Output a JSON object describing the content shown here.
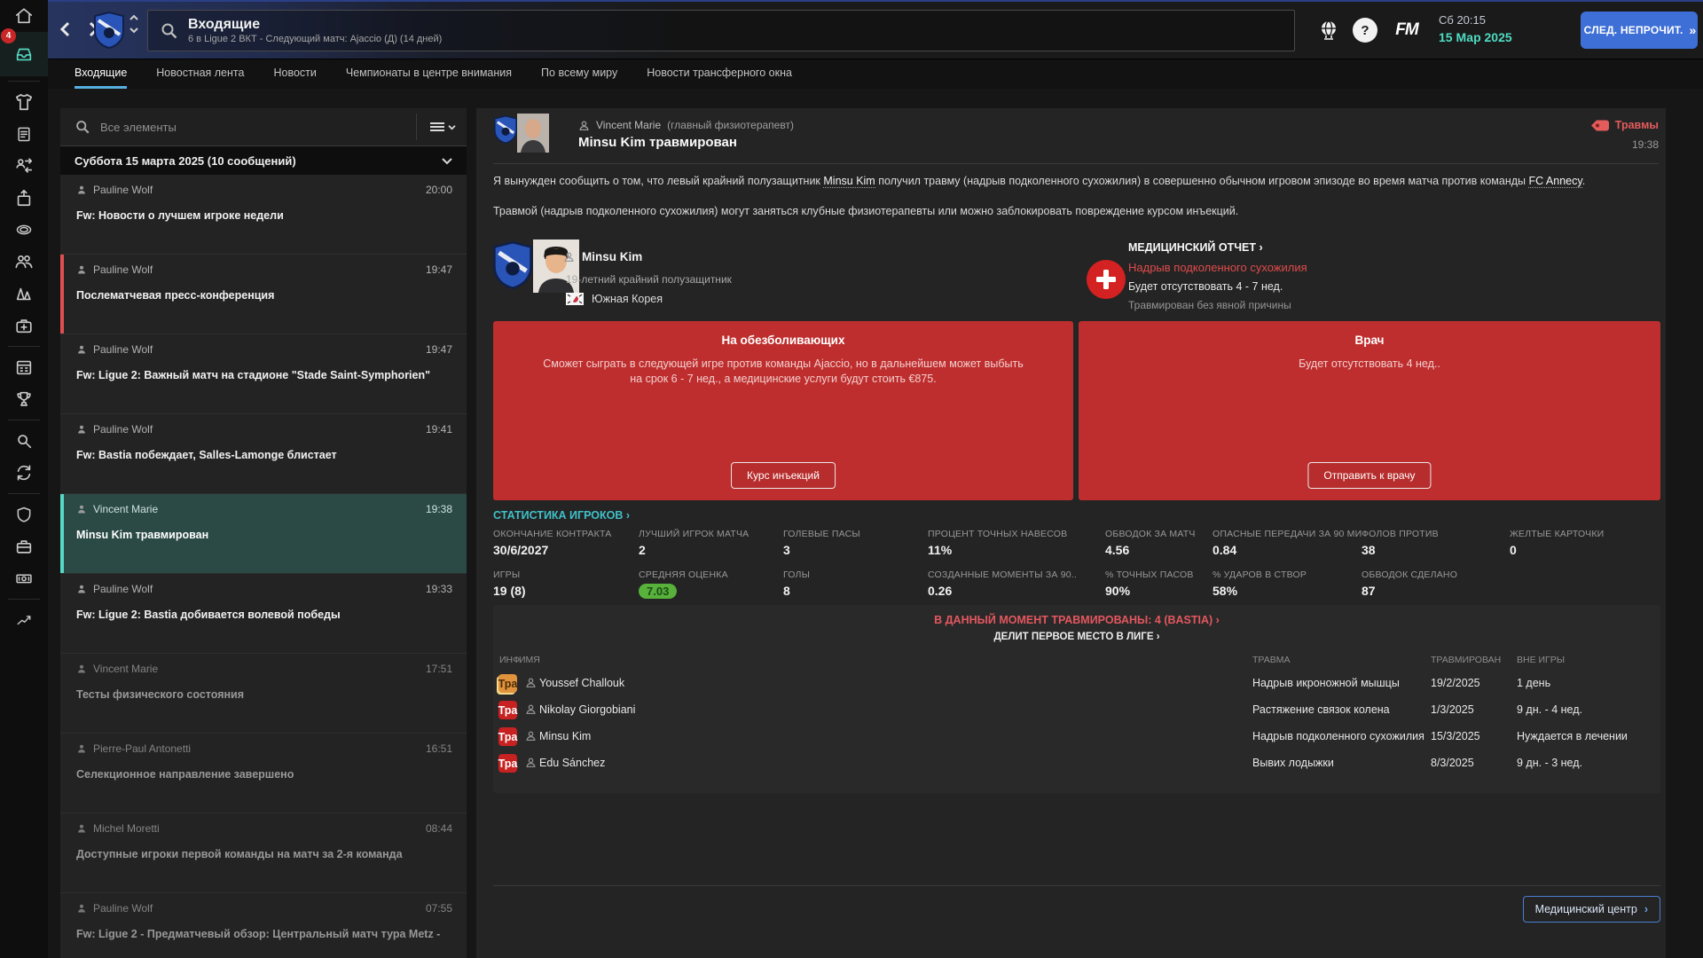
{
  "topbar": {
    "title": "Входящие",
    "subtitle": "6 в Ligue 2 ВКТ - Следующий матч: Ajaccio (Д) (14 дней)",
    "day_time": "Сб 20:15",
    "date": "15 Мар 2025",
    "next_unread_label": "СЛЕД. НЕПРОЧИТ.",
    "fm_logo": "FM",
    "help_glyph": "?"
  },
  "tabs": [
    {
      "label": "Входящие",
      "active": true
    },
    {
      "label": "Новостная лента",
      "active": false
    },
    {
      "label": "Новости",
      "active": false
    },
    {
      "label": "Чемпионаты в центре внимания",
      "active": false
    },
    {
      "label": "По всему миру",
      "active": false
    },
    {
      "label": "Новости трансферного окна",
      "active": false
    }
  ],
  "sidebar": {
    "badge": "4",
    "icons": [
      "home",
      "inbox",
      "shirt",
      "clipboard",
      "swap",
      "sub",
      "disc",
      "staff",
      "training",
      "medical",
      "calendar",
      "trophy",
      "scout",
      "transfers",
      "club",
      "briefcase",
      "finance",
      "form"
    ]
  },
  "inbox": {
    "search_placeholder": "Все элементы",
    "group_header": "Суббота 15 марта 2025 (10 сообщений)",
    "messages": [
      {
        "sender": "Pauline Wolf",
        "time": "20:00",
        "subject": "Fw: Новости о лучшем игроке недели",
        "state": "unread",
        "flag": false
      },
      {
        "sender": "Pauline Wolf",
        "time": "19:47",
        "subject": "Послематчевая пресс-конференция",
        "state": "unread",
        "flag": true
      },
      {
        "sender": "Pauline Wolf",
        "time": "19:47",
        "subject": "Fw: Ligue 2: Важный матч на стадионе \"Stade Saint-Symphorien\"",
        "state": "unread",
        "flag": false
      },
      {
        "sender": "Pauline Wolf",
        "time": "19:41",
        "subject": "Fw: Bastia побеждает, Salles-Lamonge блистает",
        "state": "unread",
        "flag": false
      },
      {
        "sender": "Vincent Marie",
        "time": "19:38",
        "subject": "Minsu Kim травмирован",
        "state": "selected",
        "flag": false
      },
      {
        "sender": "Pauline Wolf",
        "time": "19:33",
        "subject": "Fw: Ligue 2: Bastia добивается волевой победы",
        "state": "unread",
        "flag": false
      },
      {
        "sender": "Vincent Marie",
        "time": "17:51",
        "subject": "Тесты физического состояния",
        "state": "read",
        "flag": false
      },
      {
        "sender": "Pierre-Paul Antonetti",
        "time": "16:51",
        "subject": "Селекционное направление завершено",
        "state": "read",
        "flag": false
      },
      {
        "sender": "Michel Moretti",
        "time": "08:44",
        "subject": "Доступные игроки первой команды на матч за 2-я команда",
        "state": "read",
        "flag": false
      },
      {
        "sender": "Pauline Wolf",
        "time": "07:55",
        "subject": "Fw: Ligue 2 - Предматчевый обзор: Центральный матч тура Metz -",
        "state": "read",
        "flag": false
      }
    ]
  },
  "mail": {
    "sender": "Vincent Marie",
    "sender_role": "(главный физиотерапевт)",
    "title": "Minsu Kim травмирован",
    "category": "Травмы",
    "time": "19:38",
    "paragraphs": [
      [
        {
          "t": "Я вынужден сообщить о том, что левый крайний полузащитник "
        },
        {
          "t": "Minsu Kim",
          "link": true
        },
        {
          "t": " получил травму (надрыв подколенного сухожилия) в совершенно обычном игровом эпизоде во время матча против команды "
        },
        {
          "t": "FC Annecy",
          "link": true
        },
        {
          "t": "."
        }
      ],
      [
        {
          "t": "Травмой (надрыв подколенного сухожилия) могут заняться клубные физиотерапевты или можно заблокировать повреждение курсом инъекций."
        }
      ]
    ],
    "player": {
      "name": "Minsu Kim",
      "description": "19-летний крайний полузащитник",
      "nationality": "Южная Корея"
    },
    "medical_report": {
      "link": "МЕДИЦИНСКИЙ ОТЧЕТ",
      "injury": "Надрыв подколенного сухожилия",
      "absence": "Будет отсутствовать 4 - 7 нед.",
      "note": "Травмирован без явной причины"
    },
    "options": [
      {
        "title": "На обезболивающих",
        "body": "Сможет сыграть в следующей игре против команды Ajaccio, но в дальнейшем может выбыть на срок 6 - 7 нед., а медицинские услуги будут стоить €875.",
        "button": "Курс инъекций"
      },
      {
        "title": "Врач",
        "body": "Будет отсутствовать 4 нед..",
        "button": "Отправить к врачу"
      }
    ],
    "stats_link": "СТАТИСТИКА ИГРОКОВ",
    "stats_rows": [
      [
        {
          "label": "ОКОНЧАНИЕ КОНТРАКТА",
          "value": "30/6/2027"
        },
        {
          "label": "ЛУЧШИЙ ИГРОК МАТЧА",
          "value": "2"
        },
        {
          "label": "ГОЛЕВЫЕ ПАСЫ",
          "value": "3"
        },
        {
          "label": "ПРОЦЕНТ ТОЧНЫХ НАВЕСОВ",
          "value": "11%"
        },
        {
          "label": "ОБВОДОК ЗА МАТЧ",
          "value": "4.56"
        },
        {
          "label": "ОПАСНЫЕ ПЕРЕДАЧИ ЗА 90 МИ..",
          "value": "0.84"
        },
        {
          "label": "ФОЛОВ ПРОТИВ",
          "value": "38"
        },
        {
          "label": "ЖЕЛТЫЕ КАРТОЧКИ",
          "value": "0"
        }
      ],
      [
        {
          "label": "ИГРЫ",
          "value": "19 (8)"
        },
        {
          "label": "СРЕДНЯЯ ОЦЕНКА",
          "value": "7.03",
          "badge": true
        },
        {
          "label": "ГОЛЫ",
          "value": "8"
        },
        {
          "label": "СОЗДАННЫЕ МОМЕНТЫ ЗА 90..",
          "value": "0.26"
        },
        {
          "label": "% ТОЧНЫХ ПАСОВ",
          "value": "90%"
        },
        {
          "label": "% УДАРОВ В СТВОР",
          "value": "58%"
        },
        {
          "label": "ОБВОДОК СДЕЛАНО",
          "value": "87"
        }
      ]
    ],
    "injured": {
      "heading": "В ДАННЫЙ МОМЕНТ ТРАВМИРОВАНЫ: 4 (BASTIA)",
      "subheading": "ДЕЛИТ ПЕРВОЕ МЕСТО В ЛИГЕ",
      "columns": {
        "info": "ИНФ",
        "name": "ИМЯ",
        "injury": "ТРАВМА",
        "injured_on": "ТРАВМИРОВАН",
        "out": "ВНЕ ИГРЫ"
      },
      "rows": [
        {
          "badge": "Тра",
          "color": "orange",
          "name": "Youssef Challouk",
          "injury": "Надрыв икроножной мышцы",
          "date": "19/2/2025",
          "out": "1 день"
        },
        {
          "badge": "Тра",
          "color": "red",
          "name": "Nikolay Giorgobiani",
          "injury": "Растяжение связок колена",
          "date": "1/3/2025",
          "out": "9 дн. - 4 нед."
        },
        {
          "badge": "Тра",
          "color": "red",
          "name": "Minsu Kim",
          "injury": "Надрыв подколенного сухожилия",
          "date": "15/3/2025",
          "out": "Нуждается в лечении"
        },
        {
          "badge": "Тра",
          "color": "red",
          "name": "Edu Sánchez",
          "injury": "Вывих лодыжки",
          "date": "8/3/2025",
          "out": "9 дн. - 3 нед."
        }
      ]
    },
    "footer_button": "Медицинский центр"
  }
}
